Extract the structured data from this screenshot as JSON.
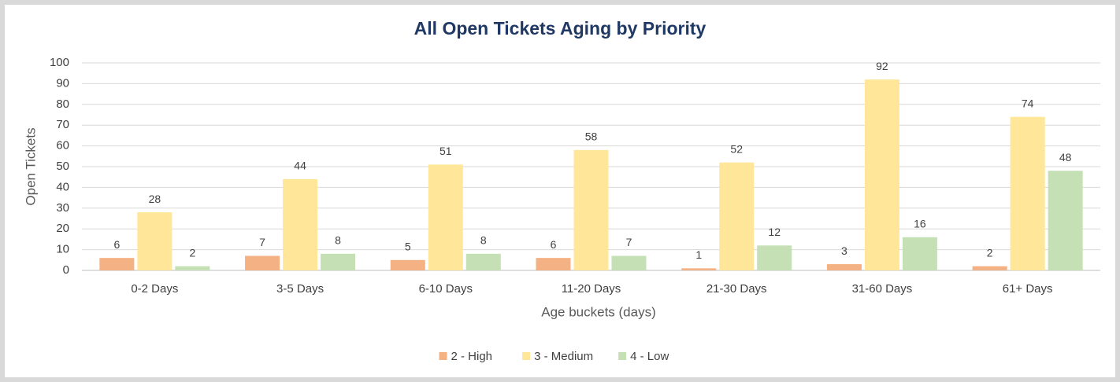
{
  "chart_data": {
    "type": "bar",
    "title": "All Open Tickets Aging by Priority",
    "xlabel": "Age buckets (days)",
    "ylabel": "Open Tickets",
    "categories": [
      "0-2 Days",
      "3-5 Days",
      "6-10 Days",
      "11-20 Days",
      "21-30 Days",
      "31-60 Days",
      "61+ Days"
    ],
    "series": [
      {
        "name": "2 - High",
        "color": "#f4b183",
        "values": [
          6,
          7,
          5,
          6,
          1,
          3,
          2
        ]
      },
      {
        "name": "3 - Medium",
        "color": "#ffe699",
        "values": [
          28,
          44,
          51,
          58,
          52,
          92,
          74
        ]
      },
      {
        "name": "4 - Low",
        "color": "#c5e0b4",
        "values": [
          2,
          8,
          8,
          7,
          12,
          16,
          48
        ]
      }
    ],
    "ylim": [
      0,
      100
    ],
    "yticks": [
      0,
      10,
      20,
      30,
      40,
      50,
      60,
      70,
      80,
      90,
      100
    ],
    "grid": true,
    "legend": "bottom"
  }
}
